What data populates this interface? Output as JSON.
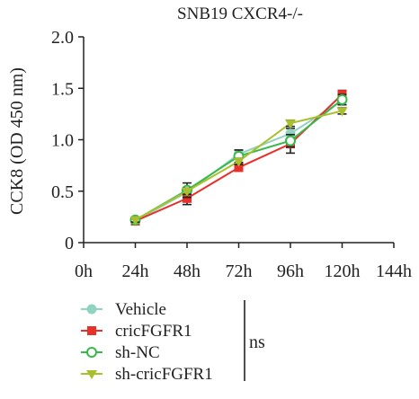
{
  "chart_data": {
    "type": "line",
    "title": "SNB19 CXCR4-/-",
    "ylabel": "CCK8 (OD 450 nm)",
    "xlabel": "",
    "categories": [
      "0h",
      "24h",
      "48h",
      "72h",
      "96h",
      "120h",
      "144h"
    ],
    "yticks": [
      "0",
      "0.5",
      "1.0",
      "1.5",
      "2.0"
    ],
    "ylim": [
      0,
      2.0
    ],
    "grid": false,
    "legend_position": "bottom-left",
    "significance_label": "ns",
    "series": [
      {
        "name": "Vehicle",
        "color": "#8fd3c0",
        "marker": "circle-filled",
        "values": [
          null,
          0.21,
          0.49,
          0.86,
          1.06,
          1.38,
          null
        ],
        "errors": [
          0,
          0.02,
          0.04,
          0.04,
          0.05,
          0.04,
          0
        ]
      },
      {
        "name": "cricFGFR1",
        "color": "#e8302a",
        "marker": "square-filled",
        "values": [
          null,
          0.21,
          0.43,
          0.73,
          0.96,
          1.44,
          null
        ],
        "errors": [
          0,
          0.02,
          0.06,
          0.03,
          0.09,
          0.04,
          0
        ]
      },
      {
        "name": "sh-NC",
        "color": "#38b84a",
        "marker": "circle-open",
        "values": [
          null,
          0.22,
          0.51,
          0.84,
          0.99,
          1.39,
          null
        ],
        "errors": [
          0,
          0.02,
          0.07,
          0.06,
          0.06,
          0.05,
          0
        ]
      },
      {
        "name": "sh-cricFGFR1",
        "color": "#a9bf2e",
        "marker": "triangle-down",
        "values": [
          null,
          0.22,
          0.5,
          0.79,
          1.16,
          1.28,
          null
        ],
        "errors": [
          0,
          0.02,
          0.03,
          0.03,
          0.03,
          0.03,
          0
        ]
      }
    ]
  }
}
